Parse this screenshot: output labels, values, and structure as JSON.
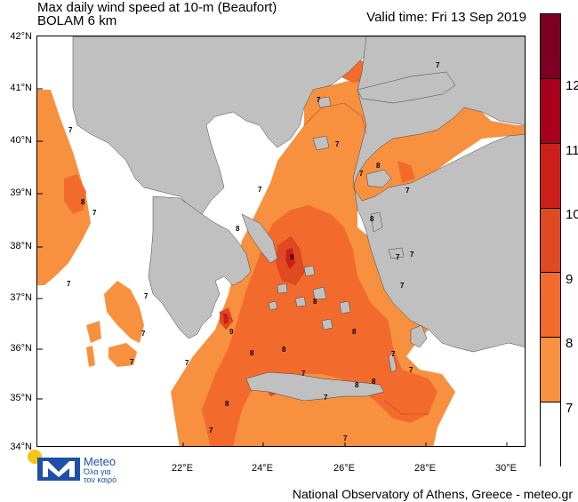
{
  "header": {
    "title": "Max daily wind speed at 10-m (Beaufort)",
    "subtitle": "BOLAM 6 km",
    "valid_time": "Valid time: Fri 13 Sep 2019"
  },
  "footer": {
    "credit": "National Observatory of Athens, Greece - meteo.gr",
    "logo_word": "Meteo",
    "logo_tagline": "Όλα για τον καιρό"
  },
  "axes": {
    "lat_labels": [
      "42°N",
      "41°N",
      "40°N",
      "39°N",
      "38°N",
      "37°N",
      "36°N",
      "35°N",
      "34°N"
    ],
    "lon_labels": [
      "22°E",
      "24°E",
      "26°E",
      "28°E",
      "30°E"
    ]
  },
  "legend": {
    "levels": [
      {
        "label": "12",
        "color": "#7d0022"
      },
      {
        "label": "11",
        "color": "#a8001c"
      },
      {
        "label": "10",
        "color": "#cc1f1a"
      },
      {
        "label": "9",
        "color": "#e04a22"
      },
      {
        "label": "8",
        "color": "#f26b2c"
      },
      {
        "label": "7",
        "color": "#f7913f"
      },
      {
        "label": "",
        "color": "#ffffff"
      }
    ],
    "tick_labels": [
      "12",
      "11",
      "10",
      "9",
      "8",
      "7"
    ]
  },
  "colors": {
    "land": "#c0c0c0",
    "sea_low": "#ffffff",
    "beaufort_7": "#f7913f",
    "beaufort_8": "#f26b2c",
    "beaufort_9": "#e04a22",
    "beaufort_10": "#cc1f1a"
  },
  "contour_labels": [
    {
      "text": "7"
    },
    {
      "text": "7"
    },
    {
      "text": "7"
    },
    {
      "text": "7"
    },
    {
      "text": "7"
    },
    {
      "text": "7"
    },
    {
      "text": "7"
    },
    {
      "text": "7"
    },
    {
      "text": "7"
    },
    {
      "text": "7"
    },
    {
      "text": "7"
    },
    {
      "text": "7"
    },
    {
      "text": "7"
    },
    {
      "text": "7"
    },
    {
      "text": "8"
    },
    {
      "text": "8"
    },
    {
      "text": "8"
    },
    {
      "text": "8"
    },
    {
      "text": "8"
    },
    {
      "text": "8"
    },
    {
      "text": "8"
    },
    {
      "text": "8"
    },
    {
      "text": "9"
    },
    {
      "text": "9"
    },
    {
      "text": "8"
    },
    {
      "text": "7"
    },
    {
      "text": "7"
    },
    {
      "text": "7"
    },
    {
      "text": "7"
    },
    {
      "text": "7"
    },
    {
      "text": "8"
    },
    {
      "text": "7"
    },
    {
      "text": "7"
    },
    {
      "text": "8"
    },
    {
      "text": "7"
    }
  ]
}
